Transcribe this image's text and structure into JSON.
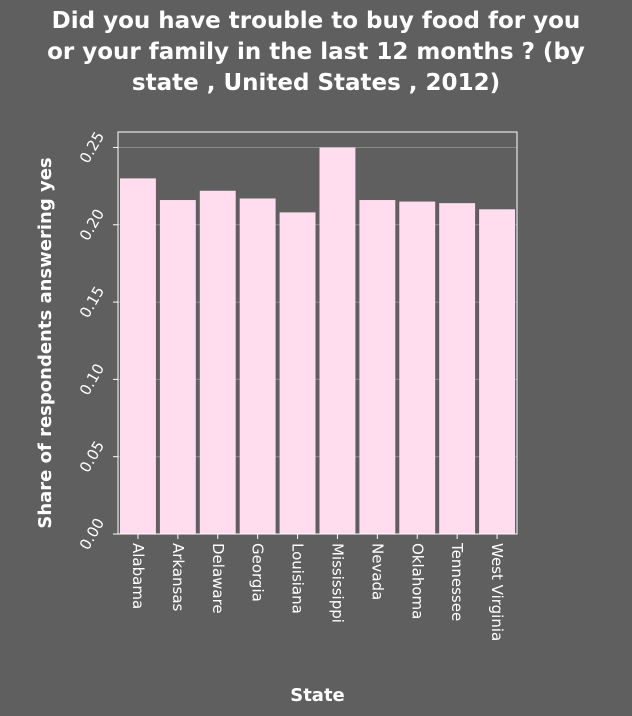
{
  "chart_data": {
    "type": "bar",
    "title": "Did you have trouble to buy food for you or your family in the last 12 months ? (by state , United States , 2012)",
    "xlabel": "State",
    "ylabel": "Share of respondents answering yes",
    "categories": [
      "Alabama",
      "Arkansas",
      "Delaware",
      "Georgia",
      "Louisiana",
      "Mississippi",
      "Nevada",
      "Oklahoma",
      "Tennessee",
      "West Virginia"
    ],
    "values": [
      0.23,
      0.216,
      0.222,
      0.217,
      0.208,
      0.25,
      0.216,
      0.215,
      0.214,
      0.21
    ],
    "ylim": [
      0,
      0.26
    ],
    "yticks": [
      "0.00",
      "0.05",
      "0.10",
      "0.15",
      "0.20",
      "0.25"
    ],
    "grid": true,
    "colors": {
      "background": "#5f5f5f",
      "bar": "#ffdcee",
      "grid": "#8a8a8a",
      "axis": "#ffffff"
    }
  }
}
